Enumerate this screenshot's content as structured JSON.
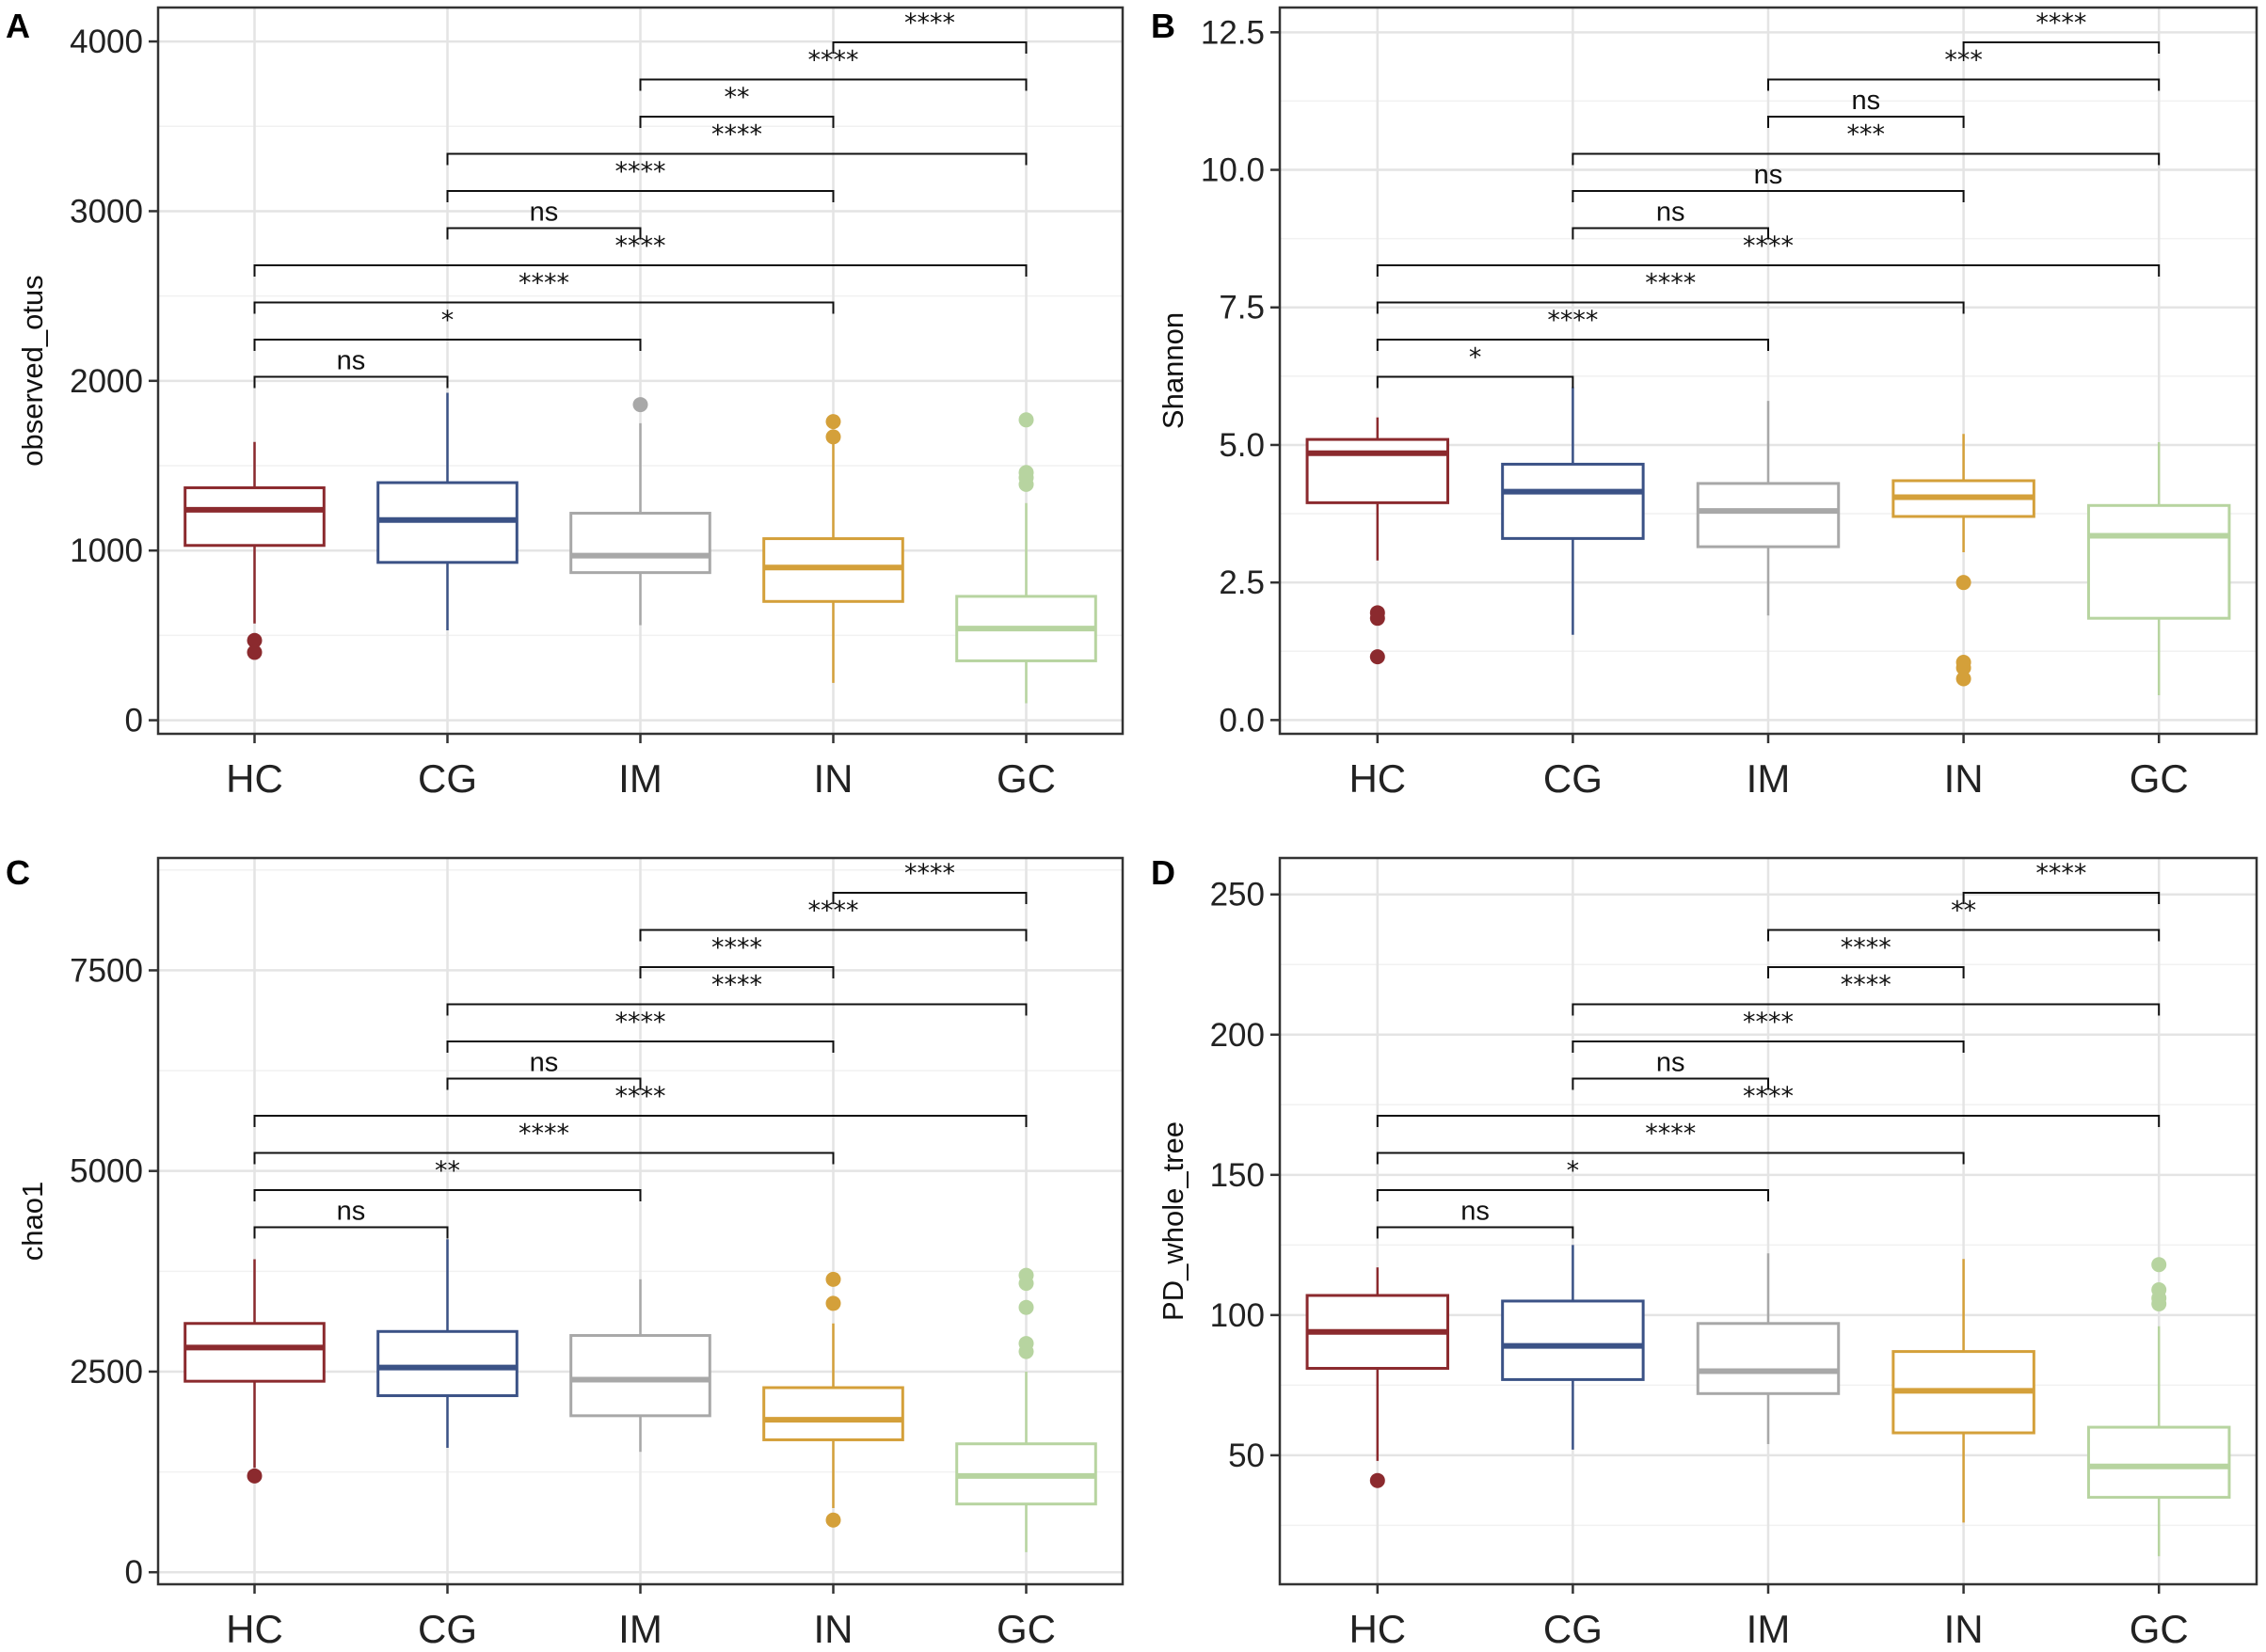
{
  "chart_data": [
    {
      "type": "box",
      "panel_label": "A",
      "ylabel": "observed_otus",
      "ylim": [
        -80,
        4200
      ],
      "yticks": [
        0,
        1000,
        2000,
        3000,
        4000
      ],
      "tick_labels": [
        "0",
        "1000",
        "2000",
        "3000",
        "4000"
      ],
      "categories": [
        "HC",
        "CG",
        "IM",
        "IN",
        "GC"
      ],
      "colors": [
        "#8b2a2e",
        "#3b5286",
        "#a8a8a8",
        "#d4a03a",
        "#b7d4a0"
      ],
      "boxes": [
        {
          "group": "HC",
          "whisker_low": 570,
          "q1": 1030,
          "median": 1240,
          "q3": 1370,
          "whisker_high": 1640,
          "outliers": [
            470,
            400
          ]
        },
        {
          "group": "CG",
          "whisker_low": 530,
          "q1": 930,
          "median": 1180,
          "q3": 1400,
          "whisker_high": 1930,
          "outliers": []
        },
        {
          "group": "IM",
          "whisker_low": 560,
          "q1": 870,
          "median": 970,
          "q3": 1220,
          "whisker_high": 1750,
          "outliers": [
            1860
          ]
        },
        {
          "group": "IN",
          "whisker_low": 220,
          "q1": 700,
          "median": 900,
          "q3": 1070,
          "whisker_high": 1660,
          "outliers": [
            1760,
            1670
          ]
        },
        {
          "group": "GC",
          "whisker_low": 100,
          "q1": 350,
          "median": 540,
          "q3": 730,
          "whisker_high": 1280,
          "outliers": [
            1770,
            1460,
            1430,
            1390
          ]
        }
      ],
      "comparisons": [
        {
          "from": "HC",
          "to": "CG",
          "label": "ns"
        },
        {
          "from": "HC",
          "to": "IM",
          "label": "*"
        },
        {
          "from": "HC",
          "to": "IN",
          "label": "****"
        },
        {
          "from": "HC",
          "to": "GC",
          "label": "****"
        },
        {
          "from": "CG",
          "to": "IM",
          "label": "ns"
        },
        {
          "from": "CG",
          "to": "IN",
          "label": "****"
        },
        {
          "from": "CG",
          "to": "GC",
          "label": "****"
        },
        {
          "from": "IM",
          "to": "IN",
          "label": "**"
        },
        {
          "from": "IM",
          "to": "GC",
          "label": "****"
        },
        {
          "from": "IN",
          "to": "GC",
          "label": "****"
        }
      ]
    },
    {
      "type": "box",
      "panel_label": "B",
      "ylabel": "Shannon",
      "ylim": [
        -0.25,
        12.95
      ],
      "yticks": [
        0.0,
        2.5,
        5.0,
        7.5,
        10.0,
        12.5
      ],
      "tick_labels": [
        "0.0",
        "2.5",
        "5.0",
        "7.5",
        "10.0",
        "12.5"
      ],
      "categories": [
        "HC",
        "CG",
        "IM",
        "IN",
        "GC"
      ],
      "colors": [
        "#8b2a2e",
        "#3b5286",
        "#a8a8a8",
        "#d4a03a",
        "#b7d4a0"
      ],
      "boxes": [
        {
          "group": "HC",
          "whisker_low": 2.9,
          "q1": 3.95,
          "median": 4.85,
          "q3": 5.1,
          "whisker_high": 5.5,
          "outliers": [
            1.95,
            1.85,
            1.15
          ]
        },
        {
          "group": "CG",
          "whisker_low": 1.55,
          "q1": 3.3,
          "median": 4.15,
          "q3": 4.65,
          "whisker_high": 6.05,
          "outliers": []
        },
        {
          "group": "IM",
          "whisker_low": 1.9,
          "q1": 3.15,
          "median": 3.8,
          "q3": 4.3,
          "whisker_high": 5.8,
          "outliers": []
        },
        {
          "group": "IN",
          "whisker_low": 3.05,
          "q1": 3.7,
          "median": 4.05,
          "q3": 4.35,
          "whisker_high": 5.2,
          "outliers": [
            2.5,
            1.05,
            0.95,
            0.75
          ]
        },
        {
          "group": "GC",
          "whisker_low": 0.45,
          "q1": 1.85,
          "median": 3.35,
          "q3": 3.9,
          "whisker_high": 5.05,
          "outliers": []
        }
      ],
      "comparisons": [
        {
          "from": "HC",
          "to": "CG",
          "label": "*"
        },
        {
          "from": "HC",
          "to": "IM",
          "label": "****"
        },
        {
          "from": "HC",
          "to": "IN",
          "label": "****"
        },
        {
          "from": "HC",
          "to": "GC",
          "label": "****"
        },
        {
          "from": "CG",
          "to": "IM",
          "label": "ns"
        },
        {
          "from": "CG",
          "to": "IN",
          "label": "ns"
        },
        {
          "from": "CG",
          "to": "GC",
          "label": "***"
        },
        {
          "from": "IM",
          "to": "IN",
          "label": "ns"
        },
        {
          "from": "IM",
          "to": "GC",
          "label": "***"
        },
        {
          "from": "IN",
          "to": "GC",
          "label": "****"
        }
      ]
    },
    {
      "type": "box",
      "panel_label": "C",
      "ylabel": "chao1",
      "ylim": [
        -150,
        8900
      ],
      "yticks": [
        0,
        2500,
        5000,
        7500
      ],
      "tick_labels": [
        "0",
        "2500",
        "5000",
        "7500"
      ],
      "categories": [
        "HC",
        "CG",
        "IM",
        "IN",
        "GC"
      ],
      "colors": [
        "#8b2a2e",
        "#3b5286",
        "#a8a8a8",
        "#d4a03a",
        "#b7d4a0"
      ],
      "boxes": [
        {
          "group": "HC",
          "whisker_low": 1300,
          "q1": 2380,
          "median": 2800,
          "q3": 3100,
          "whisker_high": 3900,
          "outliers": [
            1200
          ]
        },
        {
          "group": "CG",
          "whisker_low": 1550,
          "q1": 2200,
          "median": 2550,
          "q3": 3000,
          "whisker_high": 4150,
          "outliers": []
        },
        {
          "group": "IM",
          "whisker_low": 1500,
          "q1": 1950,
          "median": 2400,
          "q3": 2950,
          "whisker_high": 3650,
          "outliers": []
        },
        {
          "group": "IN",
          "whisker_low": 800,
          "q1": 1650,
          "median": 1900,
          "q3": 2300,
          "whisker_high": 3100,
          "outliers": [
            3650,
            3350,
            650
          ]
        },
        {
          "group": "GC",
          "whisker_low": 250,
          "q1": 850,
          "median": 1200,
          "q3": 1600,
          "whisker_high": 2500,
          "outliers": [
            3700,
            3600,
            3300,
            2850,
            2750
          ]
        }
      ],
      "comparisons": [
        {
          "from": "HC",
          "to": "CG",
          "label": "ns"
        },
        {
          "from": "HC",
          "to": "IM",
          "label": "**"
        },
        {
          "from": "HC",
          "to": "IN",
          "label": "****"
        },
        {
          "from": "HC",
          "to": "GC",
          "label": "****"
        },
        {
          "from": "CG",
          "to": "IM",
          "label": "ns"
        },
        {
          "from": "CG",
          "to": "IN",
          "label": "****"
        },
        {
          "from": "CG",
          "to": "GC",
          "label": "****"
        },
        {
          "from": "IM",
          "to": "IN",
          "label": "****"
        },
        {
          "from": "IM",
          "to": "GC",
          "label": "****"
        },
        {
          "from": "IN",
          "to": "GC",
          "label": "****"
        }
      ]
    },
    {
      "type": "box",
      "panel_label": "D",
      "ylabel": "PD_whole_tree",
      "ylim": [
        4,
        263
      ],
      "yticks": [
        50,
        100,
        150,
        200,
        250
      ],
      "tick_labels": [
        "50",
        "100",
        "150",
        "200",
        "250"
      ],
      "categories": [
        "HC",
        "CG",
        "IM",
        "IN",
        "GC"
      ],
      "colors": [
        "#8b2a2e",
        "#3b5286",
        "#a8a8a8",
        "#d4a03a",
        "#b7d4a0"
      ],
      "boxes": [
        {
          "group": "HC",
          "whisker_low": 48,
          "q1": 81,
          "median": 94,
          "q3": 107,
          "whisker_high": 117,
          "outliers": [
            41
          ]
        },
        {
          "group": "CG",
          "whisker_low": 52,
          "q1": 77,
          "median": 89,
          "q3": 105,
          "whisker_high": 125,
          "outliers": []
        },
        {
          "group": "IM",
          "whisker_low": 54,
          "q1": 72,
          "median": 80,
          "q3": 97,
          "whisker_high": 122,
          "outliers": []
        },
        {
          "group": "IN",
          "whisker_low": 26,
          "q1": 58,
          "median": 73,
          "q3": 87,
          "whisker_high": 120,
          "outliers": []
        },
        {
          "group": "GC",
          "whisker_low": 14,
          "q1": 35,
          "median": 46,
          "q3": 60,
          "whisker_high": 96,
          "outliers": [
            118,
            109,
            106,
            104
          ]
        }
      ],
      "comparisons": [
        {
          "from": "HC",
          "to": "CG",
          "label": "ns"
        },
        {
          "from": "HC",
          "to": "IM",
          "label": "*"
        },
        {
          "from": "HC",
          "to": "IN",
          "label": "****"
        },
        {
          "from": "HC",
          "to": "GC",
          "label": "****"
        },
        {
          "from": "CG",
          "to": "IM",
          "label": "ns"
        },
        {
          "from": "CG",
          "to": "IN",
          "label": "****"
        },
        {
          "from": "CG",
          "to": "GC",
          "label": "****"
        },
        {
          "from": "IM",
          "to": "IN",
          "label": "****"
        },
        {
          "from": "IM",
          "to": "GC",
          "label": "**"
        },
        {
          "from": "IN",
          "to": "GC",
          "label": "****"
        }
      ]
    }
  ]
}
